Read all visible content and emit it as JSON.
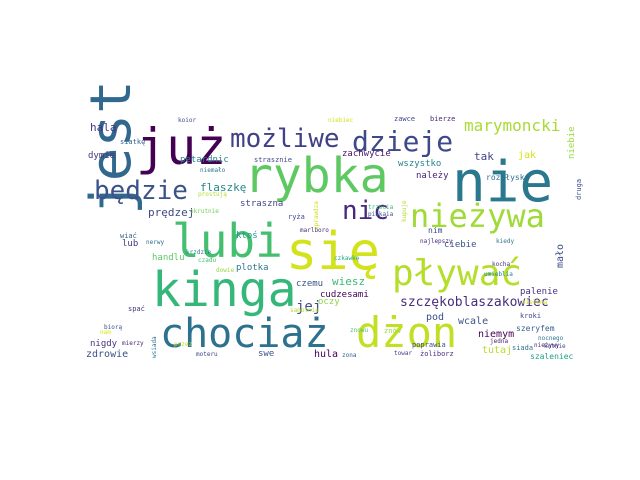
{
  "words": [
    {
      "text": "nie",
      "color": "#2a788e"
    },
    {
      "text": "się",
      "color": "#d2e21b"
    },
    {
      "text": "jest",
      "color": "#31688e"
    },
    {
      "text": "kinga",
      "color": "#35b779"
    },
    {
      "text": "rybka",
      "color": "#5ec962"
    },
    {
      "text": "lubi",
      "color": "#44bf70"
    },
    {
      "text": "już",
      "color": "#440154"
    },
    {
      "text": "chociaż",
      "color": "#2c728e"
    },
    {
      "text": "dżon",
      "color": "#c2df23"
    },
    {
      "text": "pływać",
      "color": "#b5de2b"
    },
    {
      "text": "nieżywa",
      "color": "#a0da39"
    },
    {
      "text": "dzieje",
      "color": "#3e4989"
    },
    {
      "text": "możliwe",
      "color": "#424086"
    },
    {
      "text": "będzie",
      "color": "#3b528b"
    },
    {
      "text": "nic",
      "color": "#482878"
    },
    {
      "text": "marymoncki",
      "color": "#a8db34"
    },
    {
      "text": "szczękoblaszakowiec",
      "color": "#472d7b"
    },
    {
      "text": "halą",
      "color": "#453781"
    },
    {
      "text": "siatkę",
      "color": "#33638d"
    },
    {
      "text": "dymie",
      "color": "#46327e"
    },
    {
      "text": "petardnic",
      "color": "#277f8e"
    },
    {
      "text": "flaszkę",
      "color": "#24878e"
    },
    {
      "text": "straszna",
      "color": "#414487"
    },
    {
      "text": "prędzej",
      "color": "#3f4788"
    },
    {
      "text": "okrutnie",
      "color": "#73d056"
    },
    {
      "text": "strasznie",
      "color": "#3e4a89"
    },
    {
      "text": "zachwycie",
      "color": "#48186a"
    },
    {
      "text": "wszystko",
      "color": "#26828e"
    },
    {
      "text": "należy",
      "color": "#482173"
    },
    {
      "text": "rozbłyska",
      "color": "#2e6f8e"
    },
    {
      "text": "tak",
      "color": "#404387"
    },
    {
      "text": "jak",
      "color": "#d8e219"
    },
    {
      "text": "niebie",
      "color": "#9bd93c"
    },
    {
      "text": "druga",
      "color": "#3d4d8a"
    },
    {
      "text": "nim",
      "color": "#3f4889"
    },
    {
      "text": "ktoś",
      "color": "#1f958b"
    },
    {
      "text": "kiedy",
      "color": "#2b758e"
    },
    {
      "text": "najlepszy",
      "color": "#472a7a"
    },
    {
      "text": "ciebie",
      "color": "#3b518b"
    },
    {
      "text": "palenie",
      "color": "#46307e"
    },
    {
      "text": "mało",
      "color": "#3d4e8a"
    },
    {
      "text": "lub",
      "color": "#453882"
    },
    {
      "text": "nerwy",
      "color": "#2d708e"
    },
    {
      "text": "handlu",
      "color": "#5cc863"
    },
    {
      "text": "plotka",
      "color": "#2a778e"
    },
    {
      "text": "wiesz",
      "color": "#3aba76"
    },
    {
      "text": "czemu",
      "color": "#3a538b"
    },
    {
      "text": "cudzesami",
      "color": "#440256"
    },
    {
      "text": "jej",
      "color": "#3e4c8a"
    },
    {
      "text": "oczy",
      "color": "#8bd646"
    },
    {
      "text": "pod",
      "color": "#3b518b"
    },
    {
      "text": "wcale",
      "color": "#3b528b"
    },
    {
      "text": "niemym",
      "color": "#440154"
    },
    {
      "text": "tutaj",
      "color": "#b8de29"
    },
    {
      "text": "szeryfem",
      "color": "#34618d"
    },
    {
      "text": "nocnego",
      "color": "#2a768e"
    },
    {
      "text": "kutnie",
      "color": "#3e4989"
    },
    {
      "text": "siada",
      "color": "#2c728e"
    },
    {
      "text": "nieżywy",
      "color": "#482576"
    },
    {
      "text": "szaleniec",
      "color": "#1fa088"
    },
    {
      "text": "nigdy",
      "color": "#453581"
    },
    {
      "text": "zdrowie",
      "color": "#3b518b"
    },
    {
      "text": "moteru",
      "color": "#404387"
    },
    {
      "text": "swe",
      "color": "#3b528b"
    },
    {
      "text": "hula",
      "color": "#440154"
    },
    {
      "text": "zona",
      "color": "#34608d"
    },
    {
      "text": "towar",
      "color": "#423f85"
    },
    {
      "text": "żoliborz",
      "color": "#472f7d"
    },
    {
      "text": "poprawia",
      "color": "#3c4f8a"
    },
    {
      "text": "umieblia",
      "color": "#27808e"
    },
    {
      "text": "kocha",
      "color": "#46317e"
    },
    {
      "text": "kroki",
      "color": "#3f4889"
    },
    {
      "text": "jedna",
      "color": "#482071"
    },
    {
      "text": "spać",
      "color": "#463480"
    },
    {
      "text": "biorą",
      "color": "#3b518b"
    },
    {
      "text": "wiać",
      "color": "#33628d"
    },
    {
      "text": "koior",
      "color": "#3d4e8a"
    },
    {
      "text": "mierzy",
      "color": "#482677"
    },
    {
      "text": "wsiada",
      "color": "#2d718e"
    },
    {
      "text": "ryża",
      "color": "#3f4788"
    },
    {
      "text": "marlboro",
      "color": "#472c7a"
    },
    {
      "text": "niemało",
      "color": "#2a788e"
    },
    {
      "text": "czadu",
      "color": "#46c06f"
    },
    {
      "text": "krzdzie",
      "color": "#26818e"
    },
    {
      "text": "prostują",
      "color": "#b0dd2f"
    },
    {
      "text": "piakaia",
      "color": "#3b528b"
    },
    {
      "text": "trzecia",
      "color": "#38b977"
    },
    {
      "text": "sprawdza",
      "color": "#d0e11c"
    },
    {
      "text": "czkawkę",
      "color": "#22a785"
    },
    {
      "text": "samotnie",
      "color": "#b2dd2d"
    },
    {
      "text": "zawce",
      "color": "#3e4989"
    },
    {
      "text": "bierze",
      "color": "#482878"
    },
    {
      "text": "niebiec",
      "color": "#d2e21b"
    },
    {
      "text": "zielona",
      "color": "#c8e020"
    },
    {
      "text": "znowu",
      "color": "#4ac16d"
    },
    {
      "text": "znów",
      "color": "#9dd93b"
    },
    {
      "text": "nam",
      "color": "#dde318"
    },
    {
      "text": "przez",
      "color": "#bddf26"
    },
    {
      "text": "kupuje",
      "color": "#b0dd2f"
    },
    {
      "text": "dowie",
      "color": "#95d840"
    }
  ]
}
